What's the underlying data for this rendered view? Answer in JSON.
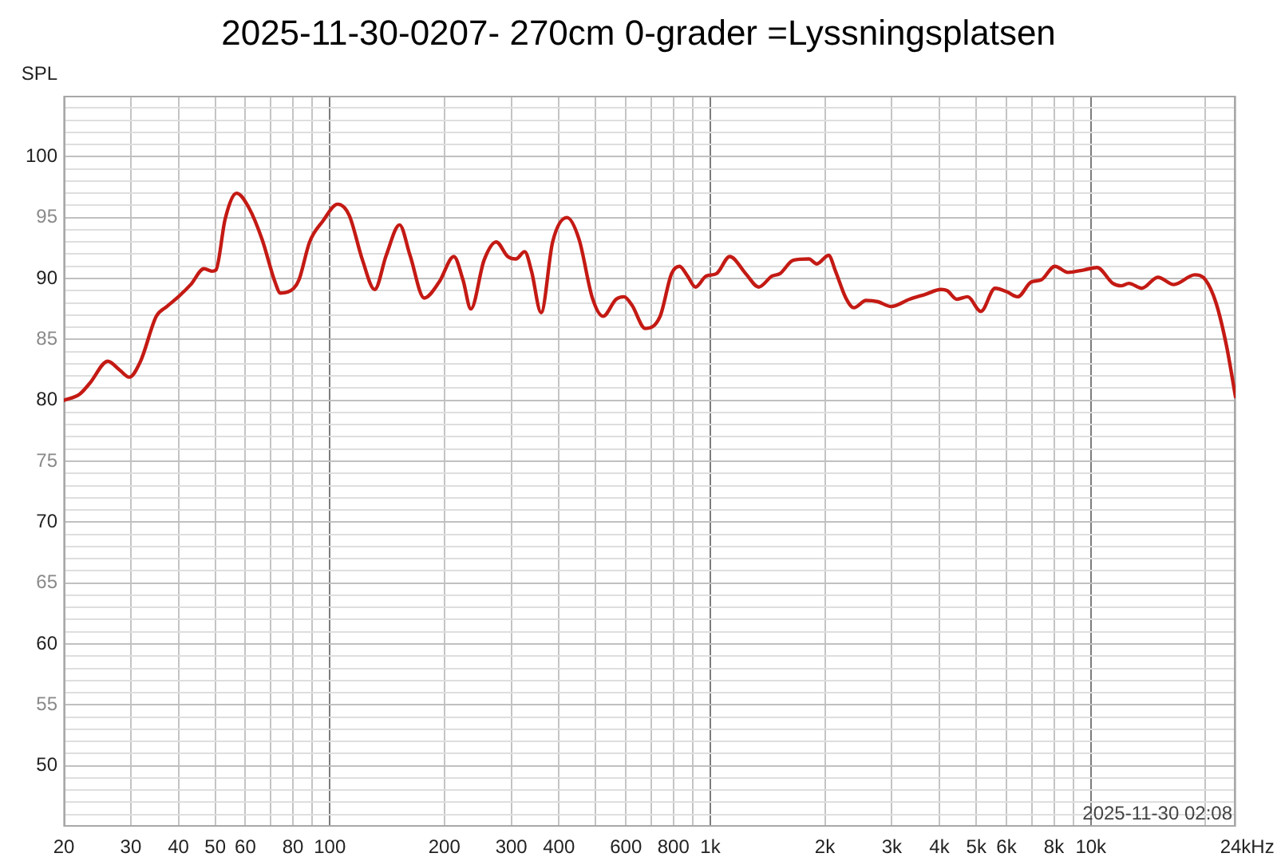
{
  "chart_data": {
    "type": "line",
    "title": "2025-11-30-0207- 270cm 0-grader =Lyssningsplatsen",
    "ylabel": "SPL",
    "xlabel": "Hz",
    "annotations": [
      "2025-11-30 02:08"
    ],
    "x": [
      20,
      22,
      23.4,
      26.1,
      28,
      29.7,
      31.8,
      35,
      37.3,
      40,
      43.1,
      46.7,
      49,
      50.2,
      53.1,
      56.9,
      61.3,
      66.4,
      71.8,
      74.2,
      80.4,
      83,
      88.5,
      95.8,
      104.9,
      112.4,
      121.9,
      131.2,
      140.7,
      152.5,
      162.5,
      177,
      193.7,
      211.8,
      223.8,
      234.8,
      254.3,
      273.7,
      293.6,
      308.2,
      325.2,
      338.9,
      359.2,
      385.1,
      420,
      452,
      489.8,
      522.5,
      565.5,
      593,
      622.5,
      674.5,
      738,
      791,
      830,
      871,
      914,
      975,
      1038,
      1125,
      1239,
      1340,
      1453,
      1524,
      1652,
      1816,
      1905,
      2046,
      2133,
      2271,
      2384,
      2566,
      2752,
      2985,
      3338,
      3674,
      4038,
      4193,
      4445,
      4745,
      5141,
      5603,
      6026,
      6424,
      6965,
      7420,
      8040,
      8710,
      9580,
      10380,
      11430,
      12000,
      12590,
      13620,
      15000,
      16520,
      18760,
      20000,
      21330,
      22720,
      24000
    ],
    "series": [
      {
        "color": "#c41a14",
        "values": [
          80.0,
          80.5,
          81.4,
          83.2,
          82.5,
          81.9,
          83.2,
          86.9,
          87.7,
          88.5,
          89.5,
          90.8,
          90.6,
          90.7,
          94.9,
          97.0,
          95.8,
          93.2,
          89.7,
          88.8,
          89.2,
          89.9,
          93.0,
          94.7,
          96.1,
          95.2,
          91.5,
          89.1,
          91.9,
          94.4,
          91.9,
          88.4,
          89.7,
          91.8,
          89.9,
          87.5,
          91.5,
          93.0,
          91.8,
          91.6,
          92.2,
          90.6,
          87.2,
          93.0,
          95.0,
          93.2,
          88.4,
          86.9,
          88.3,
          88.5,
          87.8,
          85.9,
          86.9,
          90.4,
          91.0,
          90.2,
          89.3,
          90.2,
          90.4,
          91.8,
          90.4,
          89.3,
          90.2,
          90.4,
          91.5,
          91.6,
          91.2,
          91.9,
          90.6,
          88.4,
          87.6,
          88.2,
          88.1,
          87.7,
          88.3,
          88.7,
          89.1,
          89.0,
          88.3,
          88.5,
          87.3,
          89.2,
          88.9,
          88.5,
          89.7,
          89.9,
          91.0,
          90.5,
          90.7,
          90.9,
          89.6,
          89.4,
          89.6,
          89.2,
          90.1,
          89.5,
          90.3,
          89.9,
          88.0,
          84.5,
          80.3
        ]
      }
    ],
    "log": "x",
    "xlim": [
      20,
      24000
    ],
    "ylim": [
      45,
      105
    ],
    "xticks": [
      20,
      30,
      40,
      50,
      60,
      {
        "value": 70,
        "label": null
      },
      80,
      {
        "value": 90,
        "label": null
      },
      100,
      200,
      300,
      400,
      {
        "value": 500,
        "label": null
      },
      600,
      {
        "value": 700,
        "label": null
      },
      800,
      {
        "value": 900,
        "label": null
      },
      {
        "value": 1000,
        "label": "1k"
      },
      {
        "value": 2000,
        "label": "2k"
      },
      {
        "value": 3000,
        "label": "3k"
      },
      {
        "value": 4000,
        "label": "4k"
      },
      {
        "value": 5000,
        "label": "5k"
      },
      {
        "value": 6000,
        "label": "6k"
      },
      {
        "value": 7000,
        "label": null
      },
      {
        "value": 8000,
        "label": "8k"
      },
      {
        "value": 9000,
        "label": null
      },
      {
        "value": 10000,
        "label": "10k"
      },
      {
        "value": 20000,
        "label": null
      },
      {
        "value": 24000,
        "label": "24k"
      }
    ],
    "yticks": [
      {
        "value": 46,
        "label": null
      },
      {
        "value": 47,
        "label": null
      },
      {
        "value": 48,
        "label": null
      },
      {
        "value": 49,
        "label": null
      },
      50,
      {
        "value": 51,
        "label": null
      },
      {
        "value": 52,
        "label": null
      },
      {
        "value": 53,
        "label": null
      },
      {
        "value": 54,
        "label": null
      },
      55,
      {
        "value": 56,
        "label": null
      },
      {
        "value": 57,
        "label": null
      },
      {
        "value": 58,
        "label": null
      },
      {
        "value": 59,
        "label": null
      },
      60,
      {
        "value": 61,
        "label": null
      },
      {
        "value": 62,
        "label": null
      },
      {
        "value": 63,
        "label": null
      },
      {
        "value": 64,
        "label": null
      },
      65,
      {
        "value": 66,
        "label": null
      },
      {
        "value": 67,
        "label": null
      },
      {
        "value": 68,
        "label": null
      },
      {
        "value": 69,
        "label": null
      },
      70,
      {
        "value": 71,
        "label": null
      },
      {
        "value": 72,
        "label": null
      },
      {
        "value": 73,
        "label": null
      },
      {
        "value": 74,
        "label": null
      },
      75,
      {
        "value": 76,
        "label": null
      },
      {
        "value": 77,
        "label": null
      },
      {
        "value": 78,
        "label": null
      },
      {
        "value": 79,
        "label": null
      },
      80,
      {
        "value": 81,
        "label": null
      },
      {
        "value": 82,
        "label": null
      },
      {
        "value": 83,
        "label": null
      },
      {
        "value": 84,
        "label": null
      },
      85,
      {
        "value": 86,
        "label": null
      },
      {
        "value": 87,
        "label": null
      },
      {
        "value": 88,
        "label": null
      },
      {
        "value": 89,
        "label": null
      },
      90,
      {
        "value": 91,
        "label": null
      },
      {
        "value": 92,
        "label": null
      },
      {
        "value": 93,
        "label": null
      },
      {
        "value": 94,
        "label": null
      },
      95,
      {
        "value": 96,
        "label": null
      },
      {
        "value": 97,
        "label": null
      },
      {
        "value": 98,
        "label": null
      },
      {
        "value": 99,
        "label": null
      },
      100,
      {
        "value": 101,
        "label": null
      },
      {
        "value": 102,
        "label": null
      },
      {
        "value": 103,
        "label": null
      },
      {
        "value": 104,
        "label": null
      }
    ],
    "grid": true,
    "marker": "none",
    "line_style": "solid",
    "legend": false
  }
}
